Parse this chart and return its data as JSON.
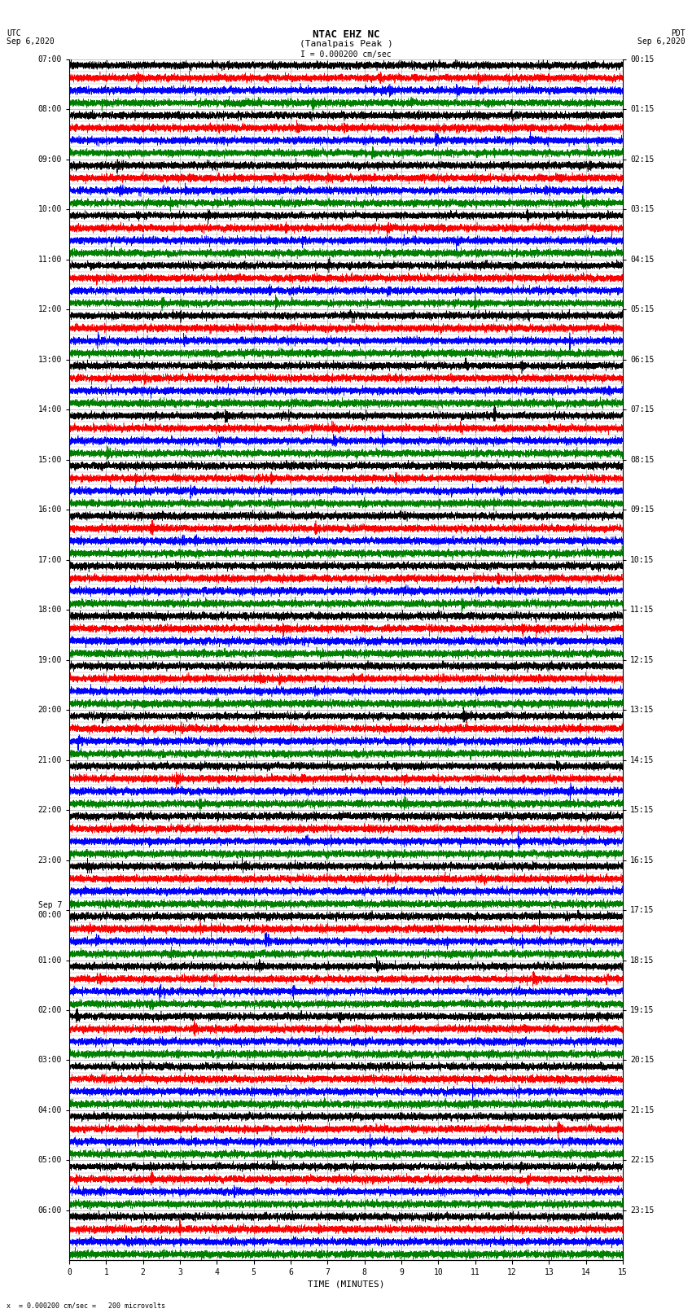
{
  "title_line1": "NTAC EHZ NC",
  "title_line2": "(Tanalpais Peak )",
  "scale_label": "I = 0.000200 cm/sec",
  "left_label_line1": "UTC",
  "left_label_line2": "Sep 6,2020",
  "right_label_line1": "PDT",
  "right_label_line2": "Sep 6,2020",
  "xlabel": "TIME (MINUTES)",
  "bottom_note": "x  = 0.000200 cm/sec =   200 microvolts",
  "utc_labels": [
    "07:00",
    "08:00",
    "09:00",
    "10:00",
    "11:00",
    "12:00",
    "13:00",
    "14:00",
    "15:00",
    "16:00",
    "17:00",
    "18:00",
    "19:00",
    "20:00",
    "21:00",
    "22:00",
    "23:00",
    "Sep 7\n00:00",
    "01:00",
    "02:00",
    "03:00",
    "04:00",
    "05:00",
    "06:00"
  ],
  "pdt_labels": [
    "00:15",
    "01:15",
    "02:15",
    "03:15",
    "04:15",
    "05:15",
    "06:15",
    "07:15",
    "08:15",
    "09:15",
    "10:15",
    "11:15",
    "12:15",
    "13:15",
    "14:15",
    "15:15",
    "16:15",
    "17:15",
    "18:15",
    "19:15",
    "20:15",
    "21:15",
    "22:15",
    "23:15"
  ],
  "rows_per_hour": 4,
  "num_hours": 24,
  "row_colors": [
    "black",
    "red",
    "blue",
    "green"
  ],
  "x_min": 0,
  "x_max": 15,
  "background_color": "white",
  "grid_color": "#888888",
  "title_fontsize": 9,
  "label_fontsize": 7,
  "tick_fontsize": 7
}
